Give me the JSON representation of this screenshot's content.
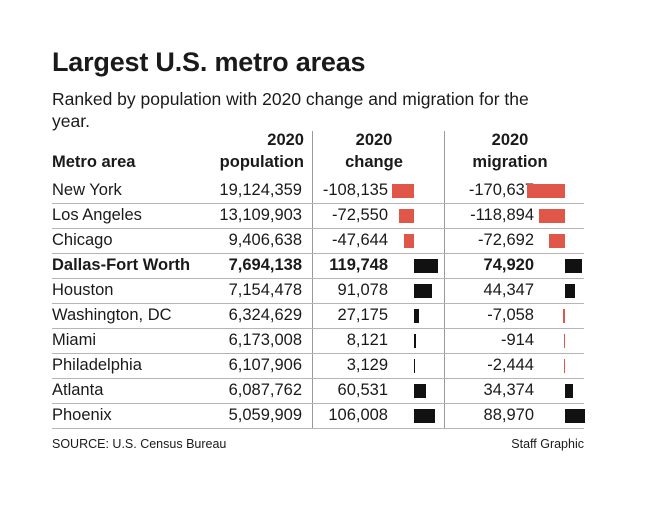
{
  "title": "Largest U.S. metro areas",
  "subtitle": "Ranked by population with 2020 change and migration for the year.",
  "headers": {
    "metro": "Metro area",
    "pop_line1": "2020",
    "pop_line2": "population",
    "chg_line1": "2020",
    "chg_line2": "change",
    "mig_line1": "2020",
    "mig_line2": "migration"
  },
  "chart_data": {
    "type": "table",
    "title": "Largest U.S. metro areas",
    "columns": [
      "Metro area",
      "2020 population",
      "2020 change",
      "2020 migration"
    ],
    "rows": [
      {
        "name": "New York",
        "population": "19,124,359",
        "change": "-108,135",
        "change_value": -108135,
        "migration": "-170,637",
        "migration_value": -170637,
        "bold": false
      },
      {
        "name": "Los Angeles",
        "population": "13,109,903",
        "change": "-72,550",
        "change_value": -72550,
        "migration": "-118,894",
        "migration_value": -118894,
        "bold": false
      },
      {
        "name": "Chicago",
        "population": "9,406,638",
        "change": "-47,644",
        "change_value": -47644,
        "migration": "-72,692",
        "migration_value": -72692,
        "bold": false
      },
      {
        "name": "Dallas-Fort Worth",
        "population": "7,694,138",
        "change": "119,748",
        "change_value": 119748,
        "migration": "74,920",
        "migration_value": 74920,
        "bold": true
      },
      {
        "name": "Houston",
        "population": "7,154,478",
        "change": "91,078",
        "change_value": 91078,
        "migration": "44,347",
        "migration_value": 44347,
        "bold": false
      },
      {
        "name": "Washington, DC",
        "population": "6,324,629",
        "change": "27,175",
        "change_value": 27175,
        "migration": "-7,058",
        "migration_value": -7058,
        "bold": false
      },
      {
        "name": "Miami",
        "population": "6,173,008",
        "change": "8,121",
        "change_value": 8121,
        "migration": "-914",
        "migration_value": -914,
        "bold": false
      },
      {
        "name": "Philadelphia",
        "population": "6,107,906",
        "change": "3,129",
        "change_value": 3129,
        "migration": "-2,444",
        "migration_value": -2444,
        "bold": false
      },
      {
        "name": "Atlanta",
        "population": "6,087,762",
        "change": "60,531",
        "change_value": 60531,
        "migration": "34,374",
        "migration_value": 34374,
        "bold": false
      },
      {
        "name": "Phoenix",
        "population": "5,059,909",
        "change": "106,008",
        "change_value": 106008,
        "migration": "88,970",
        "migration_value": 88970,
        "bold": false
      }
    ],
    "colors": {
      "negative": "#e0574a",
      "positive": "#111111"
    }
  },
  "footer": {
    "source": "SOURCE: U.S. Census Bureau",
    "credit": "Staff Graphic"
  }
}
